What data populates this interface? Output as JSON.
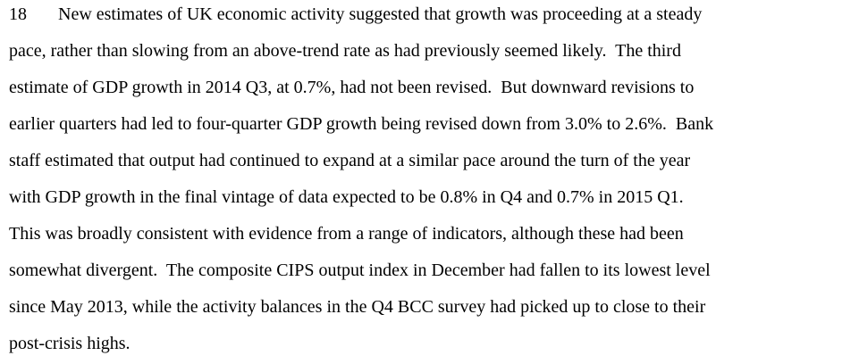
{
  "paragraph": {
    "number": "18",
    "lines": [
      "New estimates of UK economic activity suggested that growth was proceeding at a steady",
      "pace, rather than slowing from an above-trend rate as had previously seemed likely.  The third",
      "estimate of GDP growth in 2014 Q3, at 0.7%, had not been revised.  But downward revisions to",
      "earlier quarters had led to four-quarter GDP growth being revised down from 3.0% to 2.6%.  Bank",
      "staff estimated that output had continued to expand at a similar pace around the turn of the year",
      "with GDP growth in the final vintage of data expected to be 0.8% in Q4 and 0.7% in 2015 Q1.",
      "This was broadly consistent with evidence from a range of indicators, although these had been",
      "somewhat divergent.  The composite CIPS output index in December had fallen to its lowest level",
      "since May 2013, while the activity balances in the Q4 BCC survey had picked up to close to their",
      "post-crisis highs."
    ]
  }
}
